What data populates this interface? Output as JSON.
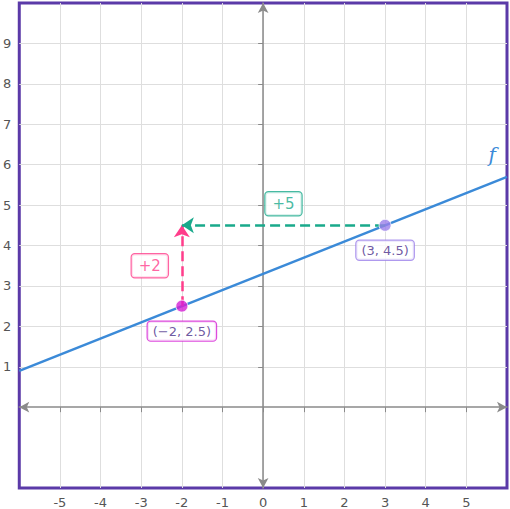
{
  "chart_data": {
    "type": "line",
    "series": [
      {
        "name": "f",
        "color": "#3b8ad8",
        "x": [
          -6,
          6
        ],
        "values": [
          0.9,
          5.7
        ]
      }
    ],
    "points": [
      {
        "x": -2,
        "y": 2.5,
        "label": "(−2, 2.5)",
        "color": "#d41fd4"
      },
      {
        "x": 3,
        "y": 4.5,
        "label": "(3, 4.5)",
        "color": "#9b80ea"
      }
    ],
    "annotations": [
      {
        "text": "+2",
        "from": [
          -2,
          2.5
        ],
        "to": [
          -2,
          4.5
        ],
        "color": "#ff3d8b"
      },
      {
        "text": "+5",
        "from": [
          3,
          4.5
        ],
        "to": [
          -2,
          4.5
        ],
        "color": "#19a98b"
      }
    ],
    "xlim": [
      -6,
      6
    ],
    "xticks": [
      -5,
      -4,
      -3,
      -2,
      -1,
      0,
      1,
      2,
      3,
      4,
      5
    ],
    "ylim": [
      -2,
      10
    ],
    "yticks": [
      1,
      2,
      3,
      4,
      5,
      6,
      7,
      8,
      9
    ],
    "grid": true
  }
}
